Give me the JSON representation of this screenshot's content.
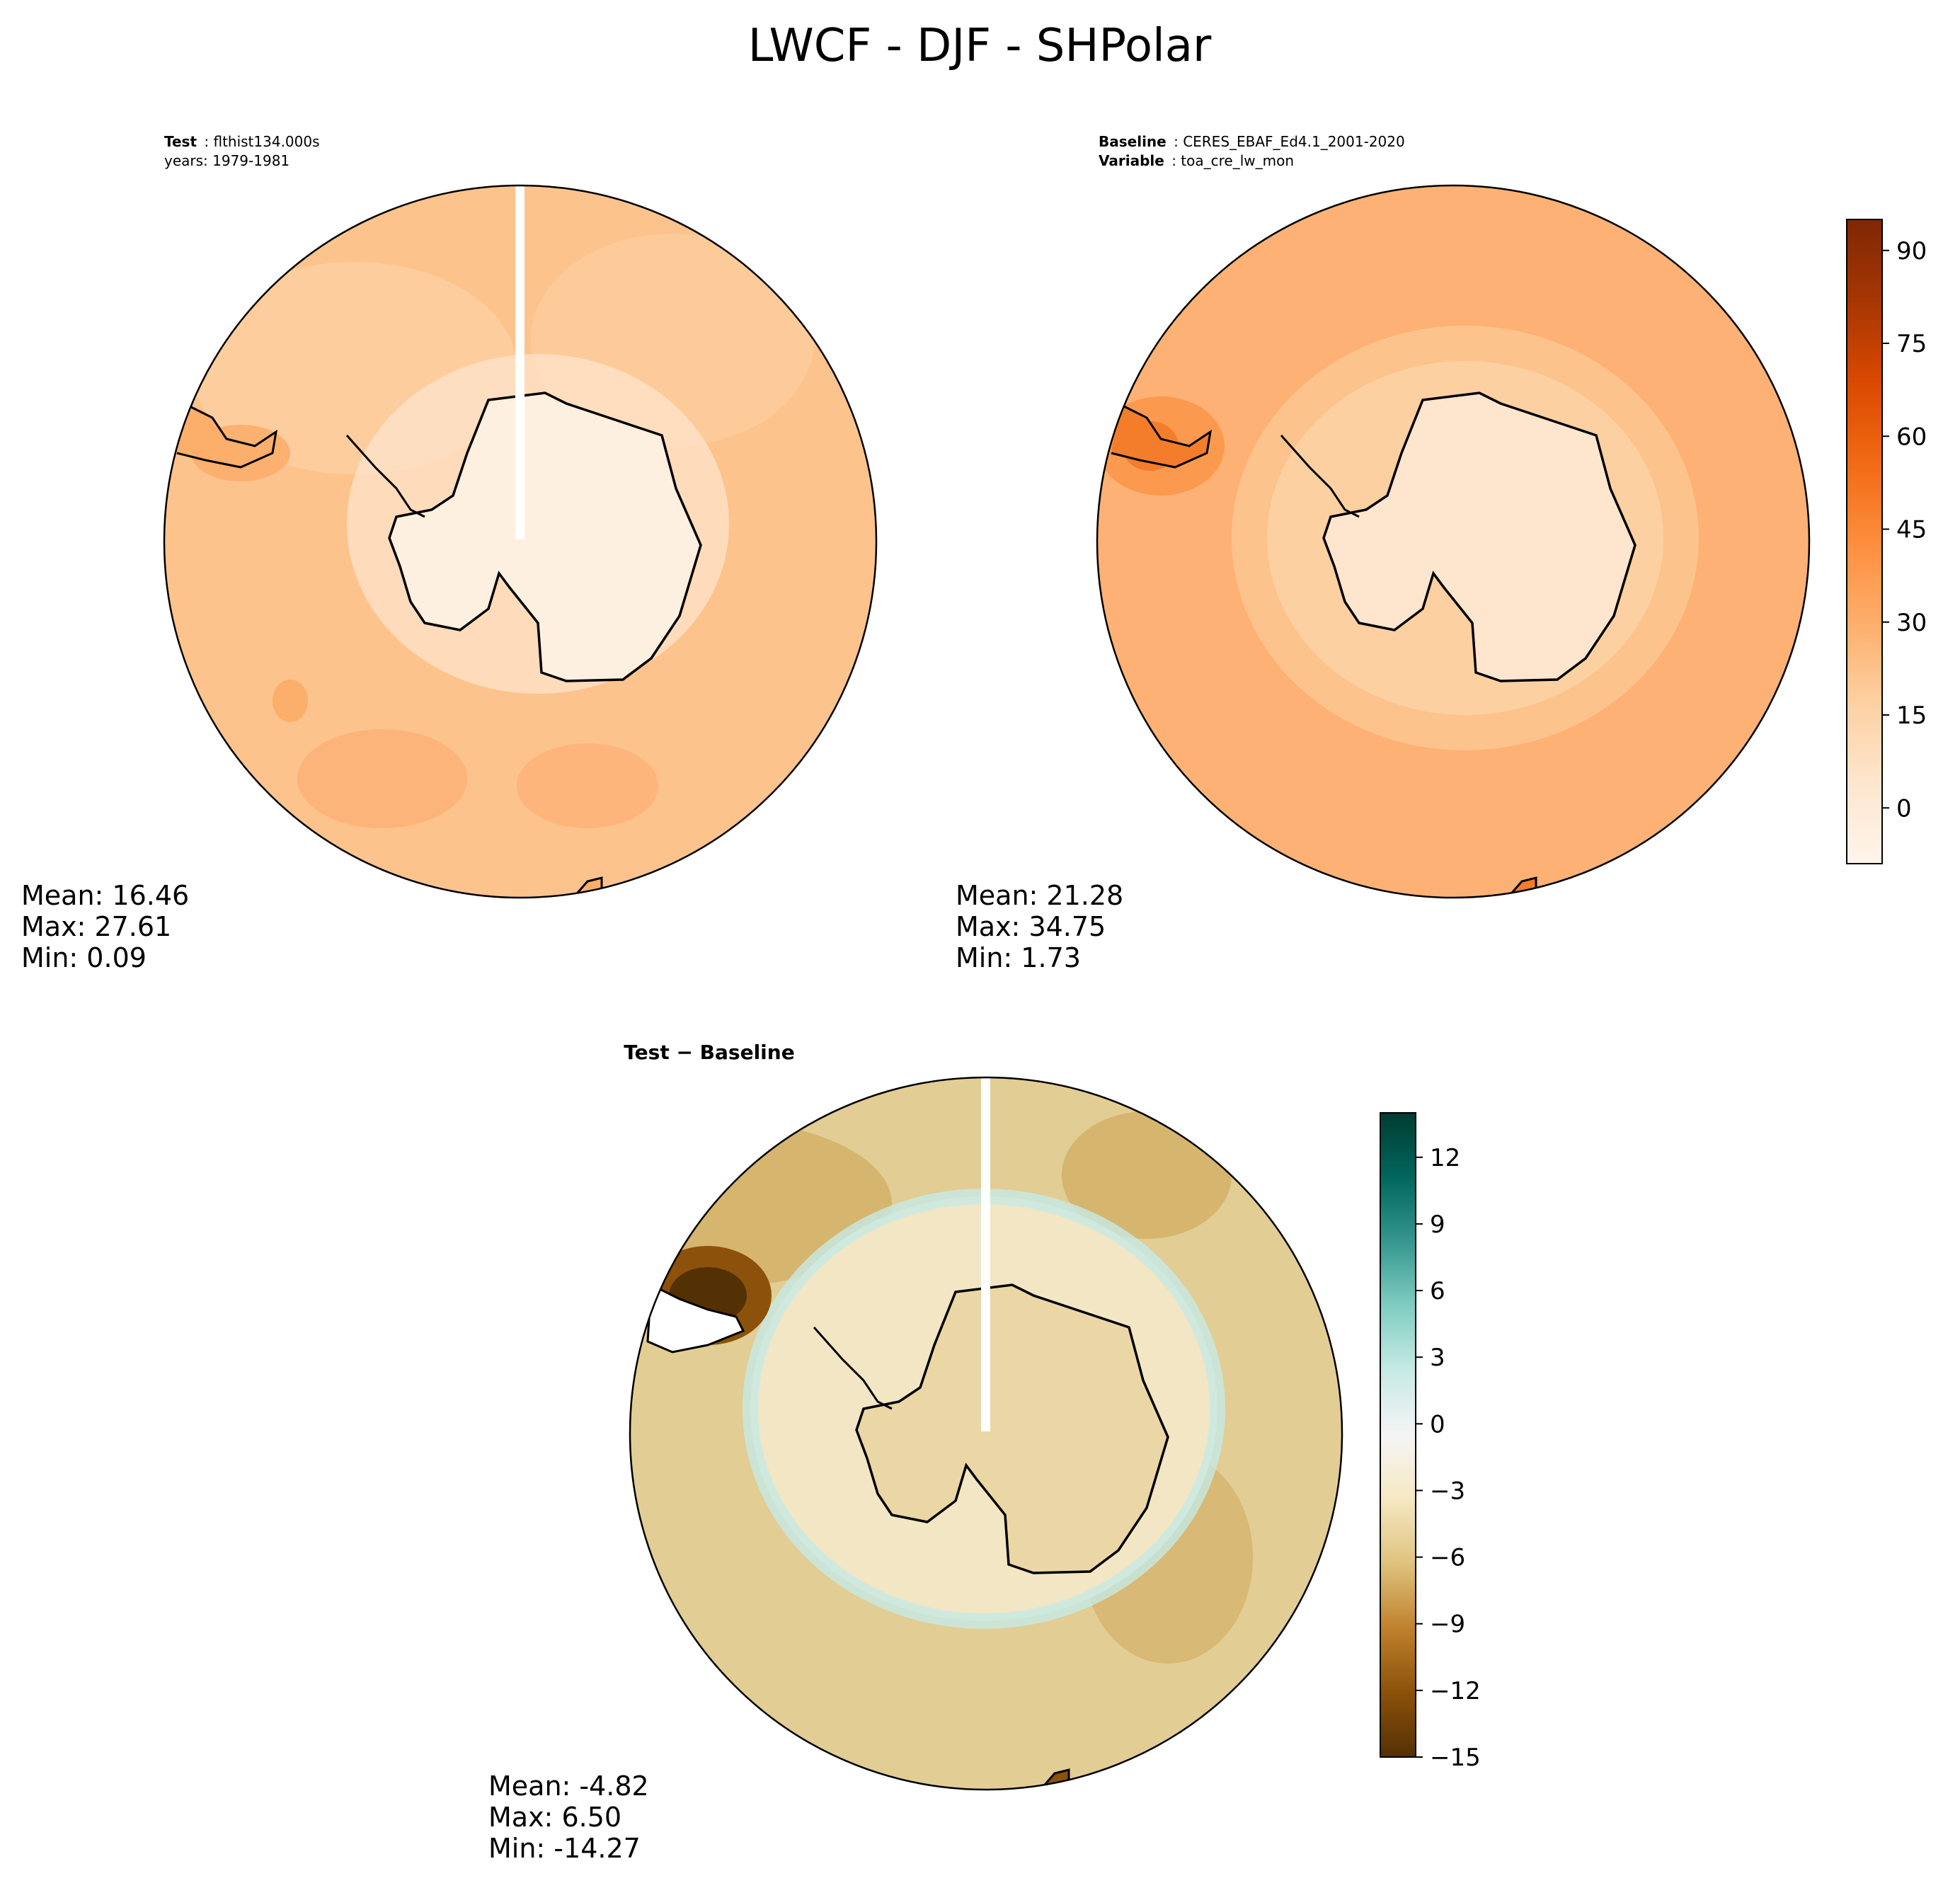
{
  "title": "LWCF - DJF - SHPolar",
  "panels": {
    "test": {
      "header": [
        {
          "label": "Test",
          "value": "flthist134.000s"
        },
        {
          "value": "years: 1979-1981"
        }
      ],
      "stats": {
        "mean": "Mean: 16.46",
        "max": "Max: 27.61",
        "min": "Min:  0.09"
      }
    },
    "baseline": {
      "header": [
        {
          "label": "Baseline",
          "value": "CERES_EBAF_Ed4.1_2001-2020"
        },
        {
          "label": "Variable",
          "value": "toa_cre_lw_mon"
        }
      ],
      "stats": {
        "mean": "Mean: 21.28",
        "max": "Max: 34.75",
        "min": "Min:  1.73"
      }
    },
    "diff": {
      "header": "Test − Baseline",
      "stats": {
        "mean": "Mean: -4.82",
        "max": "Max:  6.50",
        "min": "Min: -14.27"
      }
    }
  },
  "chart_data": [
    {
      "type": "heatmap",
      "projection": "south-polar-stereographic",
      "panel": "test",
      "title": "Test: flthist134.000s",
      "stats": {
        "mean": 16.46,
        "max": 27.61,
        "min": 0.09
      },
      "colormap": "Oranges",
      "colorbar_range": [
        -9,
        95
      ]
    },
    {
      "type": "heatmap",
      "projection": "south-polar-stereographic",
      "panel": "baseline",
      "title": "Baseline: CERES_EBAF_Ed4.1_2001-2020",
      "stats": {
        "mean": 21.28,
        "max": 34.75,
        "min": 1.73
      },
      "colormap": "Oranges",
      "colorbar_range": [
        -9,
        95
      ],
      "colorbar_ticks": [
        "0",
        "15",
        "30",
        "45",
        "60",
        "75",
        "90"
      ],
      "colorbar_tick_values": [
        0,
        15,
        30,
        45,
        60,
        75,
        90
      ]
    },
    {
      "type": "heatmap",
      "projection": "south-polar-stereographic",
      "panel": "diff",
      "title": "Test − Baseline",
      "stats": {
        "mean": -4.82,
        "max": 6.5,
        "min": -14.27
      },
      "colormap": "BrBG",
      "colorbar_range": [
        -15,
        14
      ],
      "colorbar_ticks": [
        "−15",
        "−12",
        "−9",
        "−6",
        "−3",
        "0",
        "3",
        "6",
        "9",
        "12"
      ],
      "colorbar_tick_values": [
        -15,
        -12,
        -9,
        -6,
        -3,
        0,
        3,
        6,
        9,
        12
      ]
    }
  ],
  "colors": {
    "oranges": [
      "#fff5eb",
      "#fee6ce",
      "#fdd0a2",
      "#fdae6b",
      "#fd8d3c",
      "#f16913",
      "#d94801",
      "#a63603",
      "#7f2704"
    ],
    "brbg": [
      "#543005",
      "#8c510a",
      "#bf812d",
      "#dfc27d",
      "#f6e8c3",
      "#f5f5f5",
      "#c7eae5",
      "#80cdc1",
      "#35978f",
      "#01665e",
      "#003c30"
    ]
  }
}
